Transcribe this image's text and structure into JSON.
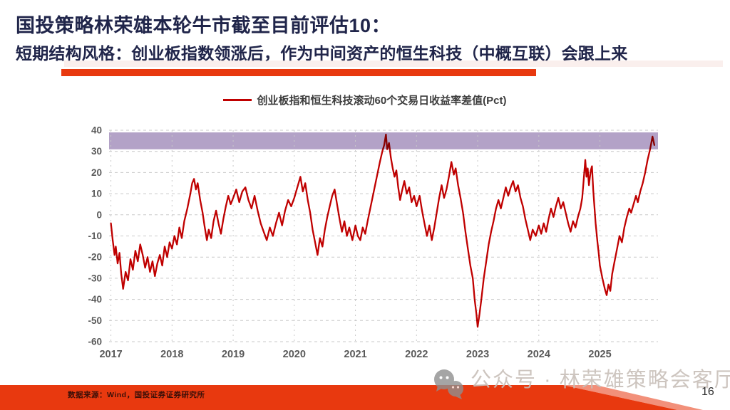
{
  "slide": {
    "title": "国投策略林荣雄本轮牛市截至目前评估10：",
    "subtitle": "短期结构风格：创业板指数领涨后，作为中间资产的恒生科技（中概互联）会跟上来",
    "source": "数据来源：Wind，国投证券证券研究所",
    "watermark": "公众号 · 林荣雄策略会客厅",
    "page_number": "16"
  },
  "colors": {
    "title_navy": "#20254a",
    "accent_red": "#e8390f",
    "accent_soft": "#f8e7e3",
    "footer_red": "#e8390f",
    "footer_highlight": "#f2907a",
    "axis_gray": "#595959",
    "grid_gray": "#c9c9c9",
    "watermark_gray": "#c8bfb9",
    "source_text": "#3a0f08"
  },
  "chart_data": {
    "type": "line",
    "title": "创业板指和恒生科技滚动60个交易日收益率差值(Pct)",
    "xlabel": "",
    "ylabel": "",
    "xlim": [
      2016.97,
      2025.95
    ],
    "ylim": [
      -60,
      40
    ],
    "x_ticks": [
      2017,
      2018,
      2019,
      2020,
      2021,
      2022,
      2023,
      2024,
      2025
    ],
    "y_ticks": [
      40,
      30,
      20,
      10,
      0,
      -10,
      -20,
      -30,
      -40,
      -50,
      -60
    ],
    "grid": "dashed",
    "legend_position": "top-center",
    "highlight_band": {
      "from": 31,
      "to": 39,
      "color": "#b3a2c7"
    },
    "series": [
      {
        "name": "创业板指和恒生科技滚动60个交易日收益率差值(Pct)",
        "color": "#c00000",
        "points": [
          [
            2017.0,
            -4
          ],
          [
            2017.03,
            -12
          ],
          [
            2017.06,
            -19
          ],
          [
            2017.08,
            -15
          ],
          [
            2017.11,
            -23
          ],
          [
            2017.14,
            -18
          ],
          [
            2017.17,
            -28
          ],
          [
            2017.2,
            -35
          ],
          [
            2017.24,
            -27
          ],
          [
            2017.28,
            -31
          ],
          [
            2017.32,
            -21
          ],
          [
            2017.36,
            -26
          ],
          [
            2017.4,
            -17
          ],
          [
            2017.44,
            -22
          ],
          [
            2017.48,
            -14
          ],
          [
            2017.52,
            -19
          ],
          [
            2017.56,
            -25
          ],
          [
            2017.6,
            -20
          ],
          [
            2017.64,
            -27
          ],
          [
            2017.68,
            -22
          ],
          [
            2017.72,
            -29
          ],
          [
            2017.76,
            -23
          ],
          [
            2017.8,
            -19
          ],
          [
            2017.84,
            -24
          ],
          [
            2017.88,
            -15
          ],
          [
            2017.92,
            -20
          ],
          [
            2017.96,
            -13
          ],
          [
            2018.0,
            -16
          ],
          [
            2018.04,
            -10
          ],
          [
            2018.08,
            -14
          ],
          [
            2018.12,
            -6
          ],
          [
            2018.16,
            -11
          ],
          [
            2018.2,
            -3
          ],
          [
            2018.25,
            3
          ],
          [
            2018.3,
            10
          ],
          [
            2018.33,
            15
          ],
          [
            2018.36,
            17
          ],
          [
            2018.39,
            12
          ],
          [
            2018.42,
            15
          ],
          [
            2018.46,
            7
          ],
          [
            2018.5,
            1
          ],
          [
            2018.53,
            -5
          ],
          [
            2018.57,
            -12
          ],
          [
            2018.6,
            -7
          ],
          [
            2018.64,
            -11
          ],
          [
            2018.68,
            -3
          ],
          [
            2018.72,
            2
          ],
          [
            2018.76,
            -4
          ],
          [
            2018.8,
            -9
          ],
          [
            2018.84,
            -2
          ],
          [
            2018.88,
            4
          ],
          [
            2018.92,
            9
          ],
          [
            2018.96,
            5
          ],
          [
            2019.0,
            8
          ],
          [
            2019.05,
            12
          ],
          [
            2019.1,
            6
          ],
          [
            2019.15,
            11
          ],
          [
            2019.2,
            13
          ],
          [
            2019.25,
            7
          ],
          [
            2019.3,
            3
          ],
          [
            2019.35,
            9
          ],
          [
            2019.4,
            2
          ],
          [
            2019.45,
            -4
          ],
          [
            2019.5,
            -8
          ],
          [
            2019.55,
            -12
          ],
          [
            2019.6,
            -6
          ],
          [
            2019.65,
            -10
          ],
          [
            2019.7,
            -4
          ],
          [
            2019.75,
            1
          ],
          [
            2019.8,
            -5
          ],
          [
            2019.85,
            2
          ],
          [
            2019.9,
            7
          ],
          [
            2019.95,
            4
          ],
          [
            2020.0,
            8
          ],
          [
            2020.05,
            13
          ],
          [
            2020.1,
            18
          ],
          [
            2020.14,
            11
          ],
          [
            2020.18,
            15
          ],
          [
            2020.22,
            7
          ],
          [
            2020.26,
            1
          ],
          [
            2020.3,
            -7
          ],
          [
            2020.34,
            -13
          ],
          [
            2020.38,
            -19
          ],
          [
            2020.42,
            -11
          ],
          [
            2020.46,
            -15
          ],
          [
            2020.5,
            -7
          ],
          [
            2020.54,
            -1
          ],
          [
            2020.58,
            4
          ],
          [
            2020.62,
            9
          ],
          [
            2020.66,
            12
          ],
          [
            2020.7,
            5
          ],
          [
            2020.74,
            -2
          ],
          [
            2020.78,
            -8
          ],
          [
            2020.82,
            -3
          ],
          [
            2020.86,
            -10
          ],
          [
            2020.9,
            -6
          ],
          [
            2020.95,
            -12
          ],
          [
            2021.0,
            -5
          ],
          [
            2021.04,
            -10
          ],
          [
            2021.08,
            -12
          ],
          [
            2021.12,
            -6
          ],
          [
            2021.16,
            -9
          ],
          [
            2021.2,
            -3
          ],
          [
            2021.25,
            4
          ],
          [
            2021.3,
            11
          ],
          [
            2021.35,
            18
          ],
          [
            2021.4,
            25
          ],
          [
            2021.44,
            30
          ],
          [
            2021.47,
            33
          ],
          [
            2021.5,
            38
          ],
          [
            2021.52,
            31
          ],
          [
            2021.55,
            34
          ],
          [
            2021.58,
            27
          ],
          [
            2021.61,
            22
          ],
          [
            2021.64,
            18
          ],
          [
            2021.67,
            21
          ],
          [
            2021.7,
            13
          ],
          [
            2021.73,
            7
          ],
          [
            2021.76,
            11
          ],
          [
            2021.8,
            16
          ],
          [
            2021.84,
            10
          ],
          [
            2021.88,
            13
          ],
          [
            2021.92,
            6
          ],
          [
            2021.96,
            9
          ],
          [
            2022.0,
            4
          ],
          [
            2022.05,
            9
          ],
          [
            2022.09,
            2
          ],
          [
            2022.13,
            -4
          ],
          [
            2022.17,
            -10
          ],
          [
            2022.21,
            -5
          ],
          [
            2022.25,
            -12
          ],
          [
            2022.29,
            -6
          ],
          [
            2022.33,
            1
          ],
          [
            2022.37,
            8
          ],
          [
            2022.41,
            14
          ],
          [
            2022.45,
            8
          ],
          [
            2022.49,
            12
          ],
          [
            2022.53,
            18
          ],
          [
            2022.57,
            25
          ],
          [
            2022.61,
            19
          ],
          [
            2022.64,
            22
          ],
          [
            2022.68,
            14
          ],
          [
            2022.72,
            8
          ],
          [
            2022.76,
            1
          ],
          [
            2022.8,
            -8
          ],
          [
            2022.84,
            -16
          ],
          [
            2022.88,
            -24
          ],
          [
            2022.92,
            -30
          ],
          [
            2022.95,
            -40
          ],
          [
            2022.98,
            -47
          ],
          [
            2023.0,
            -53
          ],
          [
            2023.03,
            -47
          ],
          [
            2023.06,
            -40
          ],
          [
            2023.1,
            -30
          ],
          [
            2023.14,
            -22
          ],
          [
            2023.18,
            -14
          ],
          [
            2023.22,
            -8
          ],
          [
            2023.26,
            -3
          ],
          [
            2023.3,
            3
          ],
          [
            2023.34,
            7
          ],
          [
            2023.38,
            3
          ],
          [
            2023.42,
            8
          ],
          [
            2023.46,
            13
          ],
          [
            2023.5,
            9
          ],
          [
            2023.54,
            13
          ],
          [
            2023.58,
            16
          ],
          [
            2023.62,
            11
          ],
          [
            2023.66,
            14
          ],
          [
            2023.7,
            8
          ],
          [
            2023.74,
            4
          ],
          [
            2023.78,
            -2
          ],
          [
            2023.82,
            -7
          ],
          [
            2023.86,
            -12
          ],
          [
            2023.9,
            -7
          ],
          [
            2023.95,
            -10
          ],
          [
            2024.0,
            -5
          ],
          [
            2024.04,
            -9
          ],
          [
            2024.08,
            -4
          ],
          [
            2024.12,
            -8
          ],
          [
            2024.16,
            -2
          ],
          [
            2024.2,
            3
          ],
          [
            2024.24,
            -1
          ],
          [
            2024.28,
            4
          ],
          [
            2024.32,
            8
          ],
          [
            2024.36,
            3
          ],
          [
            2024.4,
            6
          ],
          [
            2024.44,
            1
          ],
          [
            2024.48,
            -4
          ],
          [
            2024.52,
            -8
          ],
          [
            2024.56,
            -3
          ],
          [
            2024.6,
            -6
          ],
          [
            2024.64,
            -1
          ],
          [
            2024.68,
            3
          ],
          [
            2024.71,
            8
          ],
          [
            2024.73,
            15
          ],
          [
            2024.76,
            26
          ],
          [
            2024.78,
            18
          ],
          [
            2024.8,
            22
          ],
          [
            2024.82,
            14
          ],
          [
            2024.85,
            21
          ],
          [
            2024.87,
            23
          ],
          [
            2024.89,
            12
          ],
          [
            2024.91,
            4
          ],
          [
            2024.93,
            -4
          ],
          [
            2024.96,
            -13
          ],
          [
            2024.98,
            -18
          ],
          [
            2025.0,
            -24
          ],
          [
            2025.04,
            -30
          ],
          [
            2025.08,
            -35
          ],
          [
            2025.11,
            -38
          ],
          [
            2025.14,
            -33
          ],
          [
            2025.17,
            -36
          ],
          [
            2025.2,
            -28
          ],
          [
            2025.24,
            -22
          ],
          [
            2025.28,
            -16
          ],
          [
            2025.32,
            -10
          ],
          [
            2025.36,
            -13
          ],
          [
            2025.4,
            -6
          ],
          [
            2025.44,
            -1
          ],
          [
            2025.48,
            3
          ],
          [
            2025.51,
            1
          ],
          [
            2025.55,
            5
          ],
          [
            2025.59,
            9
          ],
          [
            2025.62,
            6
          ],
          [
            2025.66,
            11
          ],
          [
            2025.7,
            15
          ],
          [
            2025.74,
            20
          ],
          [
            2025.78,
            26
          ],
          [
            2025.82,
            31
          ],
          [
            2025.86,
            37
          ],
          [
            2025.89,
            33
          ]
        ]
      }
    ]
  }
}
